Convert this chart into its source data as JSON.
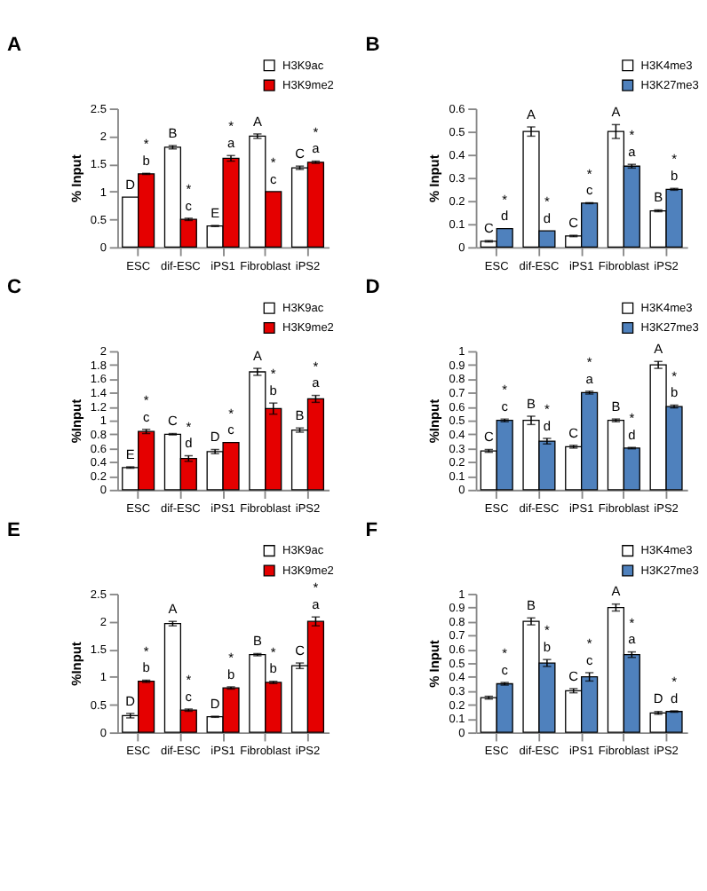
{
  "chart_data": [
    {
      "type": "bar",
      "title": "A",
      "ylabel": "% Input",
      "categories": [
        "ESC",
        "dif-ESC",
        "iPS1",
        "Fibroblast",
        "iPS2"
      ],
      "ylim": [
        0,
        2.5
      ],
      "yticks": [
        0,
        0.5,
        1,
        1.5,
        2,
        2.5
      ],
      "grid": false,
      "legend": "top right",
      "series": [
        {
          "name": "H3K9ac",
          "color": "#ffffff",
          "values": [
            0.9,
            1.8,
            0.38,
            2.0,
            1.43
          ],
          "errors": [
            null,
            0.03,
            0.01,
            0.04,
            0.03
          ],
          "value_labels": [
            "D",
            "B",
            "E",
            "A",
            "C"
          ]
        },
        {
          "name": "H3K9me2",
          "color": "#e50000",
          "values": [
            1.32,
            0.5,
            1.6,
            1.0,
            1.53
          ],
          "errors": [
            0.01,
            0.02,
            0.05,
            null,
            0.02
          ],
          "value_labels": [
            "*\nb",
            "*\nc",
            "*\na",
            "*\nc",
            "*\na"
          ]
        }
      ]
    },
    {
      "type": "bar",
      "title": "B",
      "ylabel": "% Input",
      "categories": [
        "ESC",
        "dif-ESC",
        "iPS1",
        "Fibroblast",
        "iPS2"
      ],
      "ylim": [
        0,
        0.6
      ],
      "yticks": [
        0,
        0.1,
        0.2,
        0.3,
        0.4,
        0.5,
        0.6
      ],
      "grid": false,
      "legend": "top right",
      "series": [
        {
          "name": "H3K4me3",
          "color": "#ffffff",
          "values": [
            0.025,
            0.5,
            0.048,
            0.5,
            0.157
          ],
          "errors": [
            0.003,
            0.02,
            0.003,
            0.03,
            0.004
          ],
          "value_labels": [
            "C",
            "A",
            "C",
            "A",
            "B"
          ]
        },
        {
          "name": "H3K27me3",
          "color": "#4f81bd",
          "values": [
            0.08,
            0.07,
            0.19,
            0.35,
            0.25
          ],
          "errors": [
            null,
            null,
            0.002,
            0.008,
            0.004
          ],
          "value_labels": [
            "*\nd",
            "*\nd",
            "*\nc",
            "*\na",
            "*\nb"
          ]
        }
      ]
    },
    {
      "type": "bar",
      "title": "C",
      "ylabel": "%Input",
      "categories": [
        "ESC",
        "dif-ESC",
        "iPS1",
        "Fibroblast",
        "iPS2"
      ],
      "ylim": [
        0,
        2
      ],
      "yticks": [
        0,
        0.2,
        0.4,
        0.6,
        0.8,
        1,
        1.2,
        1.4,
        1.6,
        1.8,
        2
      ],
      "grid": false,
      "legend": "top right",
      "series": [
        {
          "name": "H3K9ac",
          "color": "#ffffff",
          "values": [
            0.32,
            0.8,
            0.55,
            1.7,
            0.86
          ],
          "errors": [
            0.01,
            0.01,
            0.03,
            0.05,
            0.03
          ],
          "value_labels": [
            "E",
            "C",
            "D",
            "A",
            "B"
          ]
        },
        {
          "name": "H3K9me2",
          "color": "#e50000",
          "values": [
            0.84,
            0.45,
            0.68,
            1.17,
            1.31
          ],
          "errors": [
            0.03,
            0.04,
            null,
            0.08,
            0.05
          ],
          "value_labels": [
            "*\nc",
            "*\nd",
            "*\nc",
            "*\nb",
            "*\na"
          ]
        }
      ]
    },
    {
      "type": "bar",
      "title": "D",
      "ylabel": "%Input",
      "categories": [
        "ESC",
        "dif-ESC",
        "iPS1",
        "Fibroblast",
        "iPS2"
      ],
      "ylim": [
        0,
        1
      ],
      "yticks": [
        0,
        0.1,
        0.2,
        0.3,
        0.4,
        0.5,
        0.6,
        0.7,
        0.8,
        0.9,
        1
      ],
      "grid": false,
      "legend": "top right",
      "series": [
        {
          "name": "H3K4me3",
          "color": "#ffffff",
          "values": [
            0.28,
            0.5,
            0.31,
            0.5,
            0.9
          ],
          "errors": [
            0.01,
            0.03,
            0.01,
            0.01,
            0.025
          ],
          "value_labels": [
            "C",
            "B",
            "C",
            "B",
            "A"
          ]
        },
        {
          "name": "H3K27me3",
          "color": "#4f81bd",
          "values": [
            0.5,
            0.35,
            0.7,
            0.3,
            0.6
          ],
          "errors": [
            0.01,
            0.02,
            0.01,
            0.005,
            0.01
          ],
          "value_labels": [
            "*\nc",
            "*\nd",
            "*\na",
            "*\nd",
            "*\nb"
          ]
        }
      ]
    },
    {
      "type": "bar",
      "title": "E",
      "ylabel": "%Input",
      "categories": [
        "ESC",
        "dif-ESC",
        "iPS1",
        "Fibroblast",
        "iPS2"
      ],
      "ylim": [
        0,
        2.5
      ],
      "yticks": [
        0,
        0.5,
        1,
        1.5,
        2,
        2.5
      ],
      "grid": false,
      "legend": "top right",
      "series": [
        {
          "name": "H3K9ac",
          "color": "#ffffff",
          "values": [
            0.3,
            1.96,
            0.28,
            1.4,
            1.2
          ],
          "errors": [
            0.04,
            0.04,
            0.01,
            0.02,
            0.05
          ],
          "value_labels": [
            "D",
            "A",
            "D",
            "B",
            "C"
          ]
        },
        {
          "name": "H3K9me2",
          "color": "#e50000",
          "values": [
            0.92,
            0.4,
            0.8,
            0.9,
            2.0
          ],
          "errors": [
            0.02,
            0.02,
            0.02,
            0.02,
            0.08
          ],
          "value_labels": [
            "*\nb",
            "*\nc",
            "*\nb",
            "*\nb",
            "*\na"
          ]
        }
      ]
    },
    {
      "type": "bar",
      "title": "F",
      "ylabel": "% Input",
      "categories": [
        "ESC",
        "dif-ESC",
        "iPS1",
        "Fibroblast",
        "iPS2"
      ],
      "ylim": [
        0,
        1
      ],
      "yticks": [
        0,
        0.1,
        0.2,
        0.3,
        0.4,
        0.5,
        0.6,
        0.7,
        0.8,
        0.9,
        1
      ],
      "grid": false,
      "legend": "top right",
      "series": [
        {
          "name": "H3K4me3",
          "color": "#ffffff",
          "values": [
            0.25,
            0.8,
            0.3,
            0.9,
            0.14
          ],
          "errors": [
            0.01,
            0.025,
            0.015,
            0.025,
            0.01
          ],
          "value_labels": [
            null,
            "B",
            "C",
            "A",
            "D"
          ]
        },
        {
          "name": "H3K27me3",
          "color": "#4f81bd",
          "values": [
            0.35,
            0.5,
            0.4,
            0.56,
            0.15
          ],
          "errors": [
            0.01,
            0.025,
            0.03,
            0.02,
            0.005
          ],
          "value_labels": [
            "*\nc",
            "*\nb",
            "*\nc",
            "*\na",
            "*\nd"
          ]
        }
      ]
    }
  ]
}
